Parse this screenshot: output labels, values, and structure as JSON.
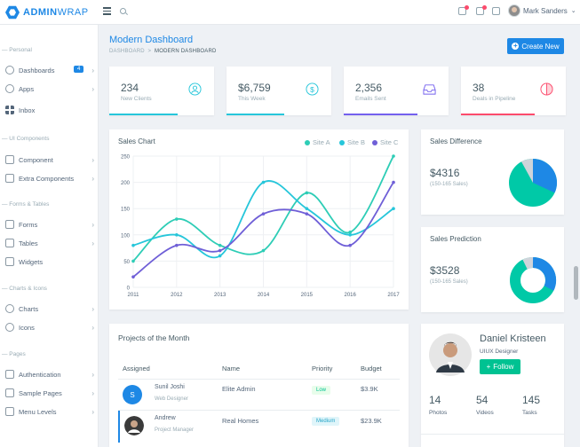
{
  "brand": {
    "bold": "ADMIN",
    "light": "WRAP"
  },
  "topbar": {
    "user_name": "Mark Sanders",
    "caret": "⌄"
  },
  "sidebar": {
    "sections": [
      {
        "label": "— Personal"
      },
      {
        "label": "— UI Components"
      },
      {
        "label": "— Forms & Tables"
      },
      {
        "label": "— Charts & Icons"
      },
      {
        "label": "— Pages"
      }
    ],
    "items": [
      {
        "label": "Dashboards",
        "badge": "4"
      },
      {
        "label": "Apps"
      },
      {
        "label": "Inbox"
      },
      {
        "label": "Component"
      },
      {
        "label": "Extra Components"
      },
      {
        "label": "Forms"
      },
      {
        "label": "Tables"
      },
      {
        "label": "Widgets"
      },
      {
        "label": "Charts"
      },
      {
        "label": "Icons"
      },
      {
        "label": "Authentication"
      },
      {
        "label": "Sample Pages"
      },
      {
        "label": "Menu Levels"
      }
    ],
    "chevron": "›"
  },
  "header": {
    "title": "Modern Dashboard",
    "breadcrumb_root": "DASHBOARD",
    "breadcrumb_sep": ">",
    "breadcrumb_current": "MODERN DASHBOARD",
    "create_label": "Create New",
    "create_icon": "+"
  },
  "stats": [
    {
      "value": "234",
      "label": "New Clients",
      "icon": "user-icon",
      "color": "#26c6da",
      "progress": 0.65
    },
    {
      "value": "$6,759",
      "label": "This Week",
      "icon": "dollar-icon",
      "color": "#26c6da",
      "progress": 0.55
    },
    {
      "value": "2,356",
      "label": "Emails Sent",
      "icon": "inbox-icon",
      "color": "#7460ee",
      "progress": 0.7
    },
    {
      "value": "38",
      "label": "Deals in Pipeline",
      "icon": "pie-icon",
      "color": "#fc4b6c",
      "progress": 0.7
    }
  ],
  "sales_chart": {
    "title": "Sales Chart",
    "legend": [
      {
        "name": "Site A",
        "color": "#2ecdb6"
      },
      {
        "name": "Site B",
        "color": "#26c6da"
      },
      {
        "name": "Site C",
        "color": "#6f5fd7"
      }
    ]
  },
  "chart_data": {
    "type": "line",
    "x": [
      "2011",
      "2012",
      "2013",
      "2014",
      "2015",
      "2016",
      "2017"
    ],
    "series": [
      {
        "name": "Site A",
        "values": [
          50,
          130,
          80,
          70,
          180,
          105,
          250
        ]
      },
      {
        "name": "Site B",
        "values": [
          80,
          100,
          60,
          200,
          150,
          100,
          150
        ]
      },
      {
        "name": "Site C",
        "values": [
          20,
          80,
          70,
          140,
          140,
          80,
          200
        ]
      }
    ],
    "yticks": [
      "0",
      "50",
      "100",
      "150",
      "200",
      "250"
    ],
    "ylim": [
      0,
      250
    ],
    "grid": true,
    "legend_position": "top-right"
  },
  "sales_difference": {
    "title": "Sales Difference",
    "value": "$4316",
    "sub": "(150-165 Sales)"
  },
  "sales_prediction": {
    "title": "Sales Prediction",
    "value": "$3528",
    "sub": "(150-165 Sales)"
  },
  "projects": {
    "title": "Projects of the Month",
    "headers": [
      "Assigned",
      "Name",
      "Priority",
      "Budget"
    ],
    "rows": [
      {
        "initial": "S",
        "person": "Sunil Joshi",
        "role": "Web Designer",
        "name": "Elite Admin",
        "priority": "Low",
        "budget": "$3.9K"
      },
      {
        "person": "Andrew",
        "role": "Project Manager",
        "name": "Real Homes",
        "priority": "Medium",
        "budget": "$23.9K"
      }
    ]
  },
  "profile": {
    "name": "Daniel Kristeen",
    "role": "UIUX Designer",
    "follow": "Follow",
    "follow_icon": "+",
    "stats": [
      {
        "value": "14",
        "label": "Photos"
      },
      {
        "value": "54",
        "label": "Videos"
      },
      {
        "value": "145",
        "label": "Tasks"
      }
    ]
  },
  "colors": {
    "primary": "#1e88e5",
    "success": "#00c292",
    "info": "#26c6da",
    "purple": "#7460ee",
    "danger": "#fc4b6c"
  }
}
